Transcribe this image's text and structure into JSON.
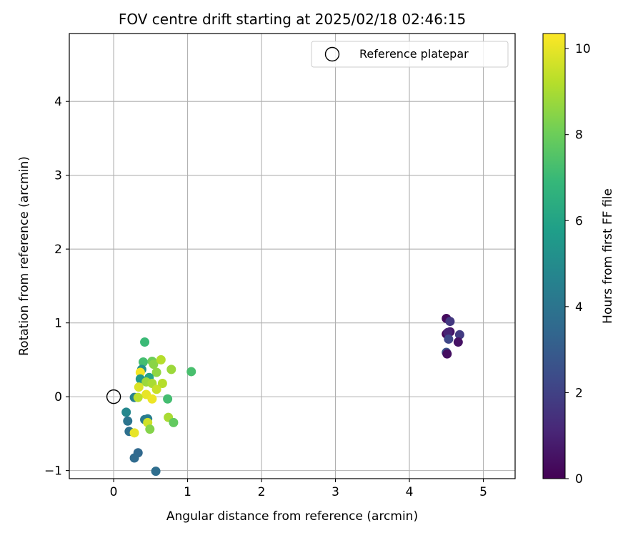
{
  "chart_data": {
    "type": "scatter",
    "title": "FOV centre drift starting at 2025/02/18 02:46:15",
    "xlabel": "Angular distance from reference (arcmin)",
    "ylabel": "Rotation from reference (arcmin)",
    "xlim": [
      -0.6,
      5.43
    ],
    "ylim": [
      -1.11,
      4.92
    ],
    "xticks": [
      0,
      1,
      2,
      3,
      4,
      5
    ],
    "yticks": [
      -1,
      0,
      1,
      2,
      3,
      4
    ],
    "grid": true,
    "legend": {
      "placement": "top-right",
      "entries": [
        "Reference platepar"
      ]
    },
    "reference": {
      "x": 0,
      "y": 0,
      "label": "Reference platepar"
    },
    "colorbar": {
      "label": "Hours from first FF file",
      "colormap": "viridis",
      "range": [
        0,
        10.35
      ],
      "ticks": [
        0,
        2,
        4,
        6,
        8,
        10
      ]
    },
    "points": [
      {
        "x": 4.5,
        "y": 1.06,
        "c": 0.3
      },
      {
        "x": 4.55,
        "y": 1.02,
        "c": 1.7
      },
      {
        "x": 4.5,
        "y": 0.85,
        "c": 0.1
      },
      {
        "x": 4.55,
        "y": 0.88,
        "c": 0.6
      },
      {
        "x": 4.52,
        "y": 0.87,
        "c": 1.0
      },
      {
        "x": 4.68,
        "y": 0.84,
        "c": 1.8
      },
      {
        "x": 4.53,
        "y": 0.78,
        "c": 2.2
      },
      {
        "x": 4.66,
        "y": 0.74,
        "c": 0.5
      },
      {
        "x": 4.5,
        "y": 0.6,
        "c": 2.6
      },
      {
        "x": 4.51,
        "y": 0.58,
        "c": 0.4
      },
      {
        "x": 0.42,
        "y": 0.74,
        "c": 7.0
      },
      {
        "x": 0.4,
        "y": 0.47,
        "c": 7.2
      },
      {
        "x": 0.52,
        "y": 0.48,
        "c": 8.0
      },
      {
        "x": 0.54,
        "y": 0.44,
        "c": 8.5
      },
      {
        "x": 0.64,
        "y": 0.5,
        "c": 9.2
      },
      {
        "x": 0.38,
        "y": 0.37,
        "c": 5.2
      },
      {
        "x": 0.58,
        "y": 0.33,
        "c": 8.6
      },
      {
        "x": 0.78,
        "y": 0.37,
        "c": 8.8
      },
      {
        "x": 1.05,
        "y": 0.34,
        "c": 7.3
      },
      {
        "x": 0.36,
        "y": 0.33,
        "c": 10.2
      },
      {
        "x": 0.36,
        "y": 0.24,
        "c": 5.5
      },
      {
        "x": 0.48,
        "y": 0.26,
        "c": 6.0
      },
      {
        "x": 0.44,
        "y": 0.2,
        "c": 8.8
      },
      {
        "x": 0.52,
        "y": 0.18,
        "c": 9.0
      },
      {
        "x": 0.66,
        "y": 0.18,
        "c": 9.2
      },
      {
        "x": 0.34,
        "y": 0.13,
        "c": 9.8
      },
      {
        "x": 0.58,
        "y": 0.1,
        "c": 9.5
      },
      {
        "x": 0.44,
        "y": 0.03,
        "c": 10.0
      },
      {
        "x": 0.28,
        "y": -0.01,
        "c": 4.5
      },
      {
        "x": 0.33,
        "y": -0.01,
        "c": 9.3
      },
      {
        "x": 0.52,
        "y": -0.03,
        "c": 10.1
      },
      {
        "x": 0.73,
        "y": -0.03,
        "c": 7.2
      },
      {
        "x": 0.17,
        "y": -0.21,
        "c": 4.8
      },
      {
        "x": 0.19,
        "y": -0.33,
        "c": 4.0
      },
      {
        "x": 0.42,
        "y": -0.31,
        "c": 4.2
      },
      {
        "x": 0.46,
        "y": -0.3,
        "c": 4.4
      },
      {
        "x": 0.46,
        "y": -0.35,
        "c": 9.6
      },
      {
        "x": 0.74,
        "y": -0.28,
        "c": 9.0
      },
      {
        "x": 0.81,
        "y": -0.35,
        "c": 7.8
      },
      {
        "x": 0.49,
        "y": -0.44,
        "c": 8.4
      },
      {
        "x": 0.21,
        "y": -0.47,
        "c": 3.8
      },
      {
        "x": 0.28,
        "y": -0.49,
        "c": 10.0
      },
      {
        "x": 0.33,
        "y": -0.76,
        "c": 3.5
      },
      {
        "x": 0.28,
        "y": -0.83,
        "c": 3.6
      },
      {
        "x": 0.57,
        "y": -1.01,
        "c": 3.7
      }
    ]
  }
}
